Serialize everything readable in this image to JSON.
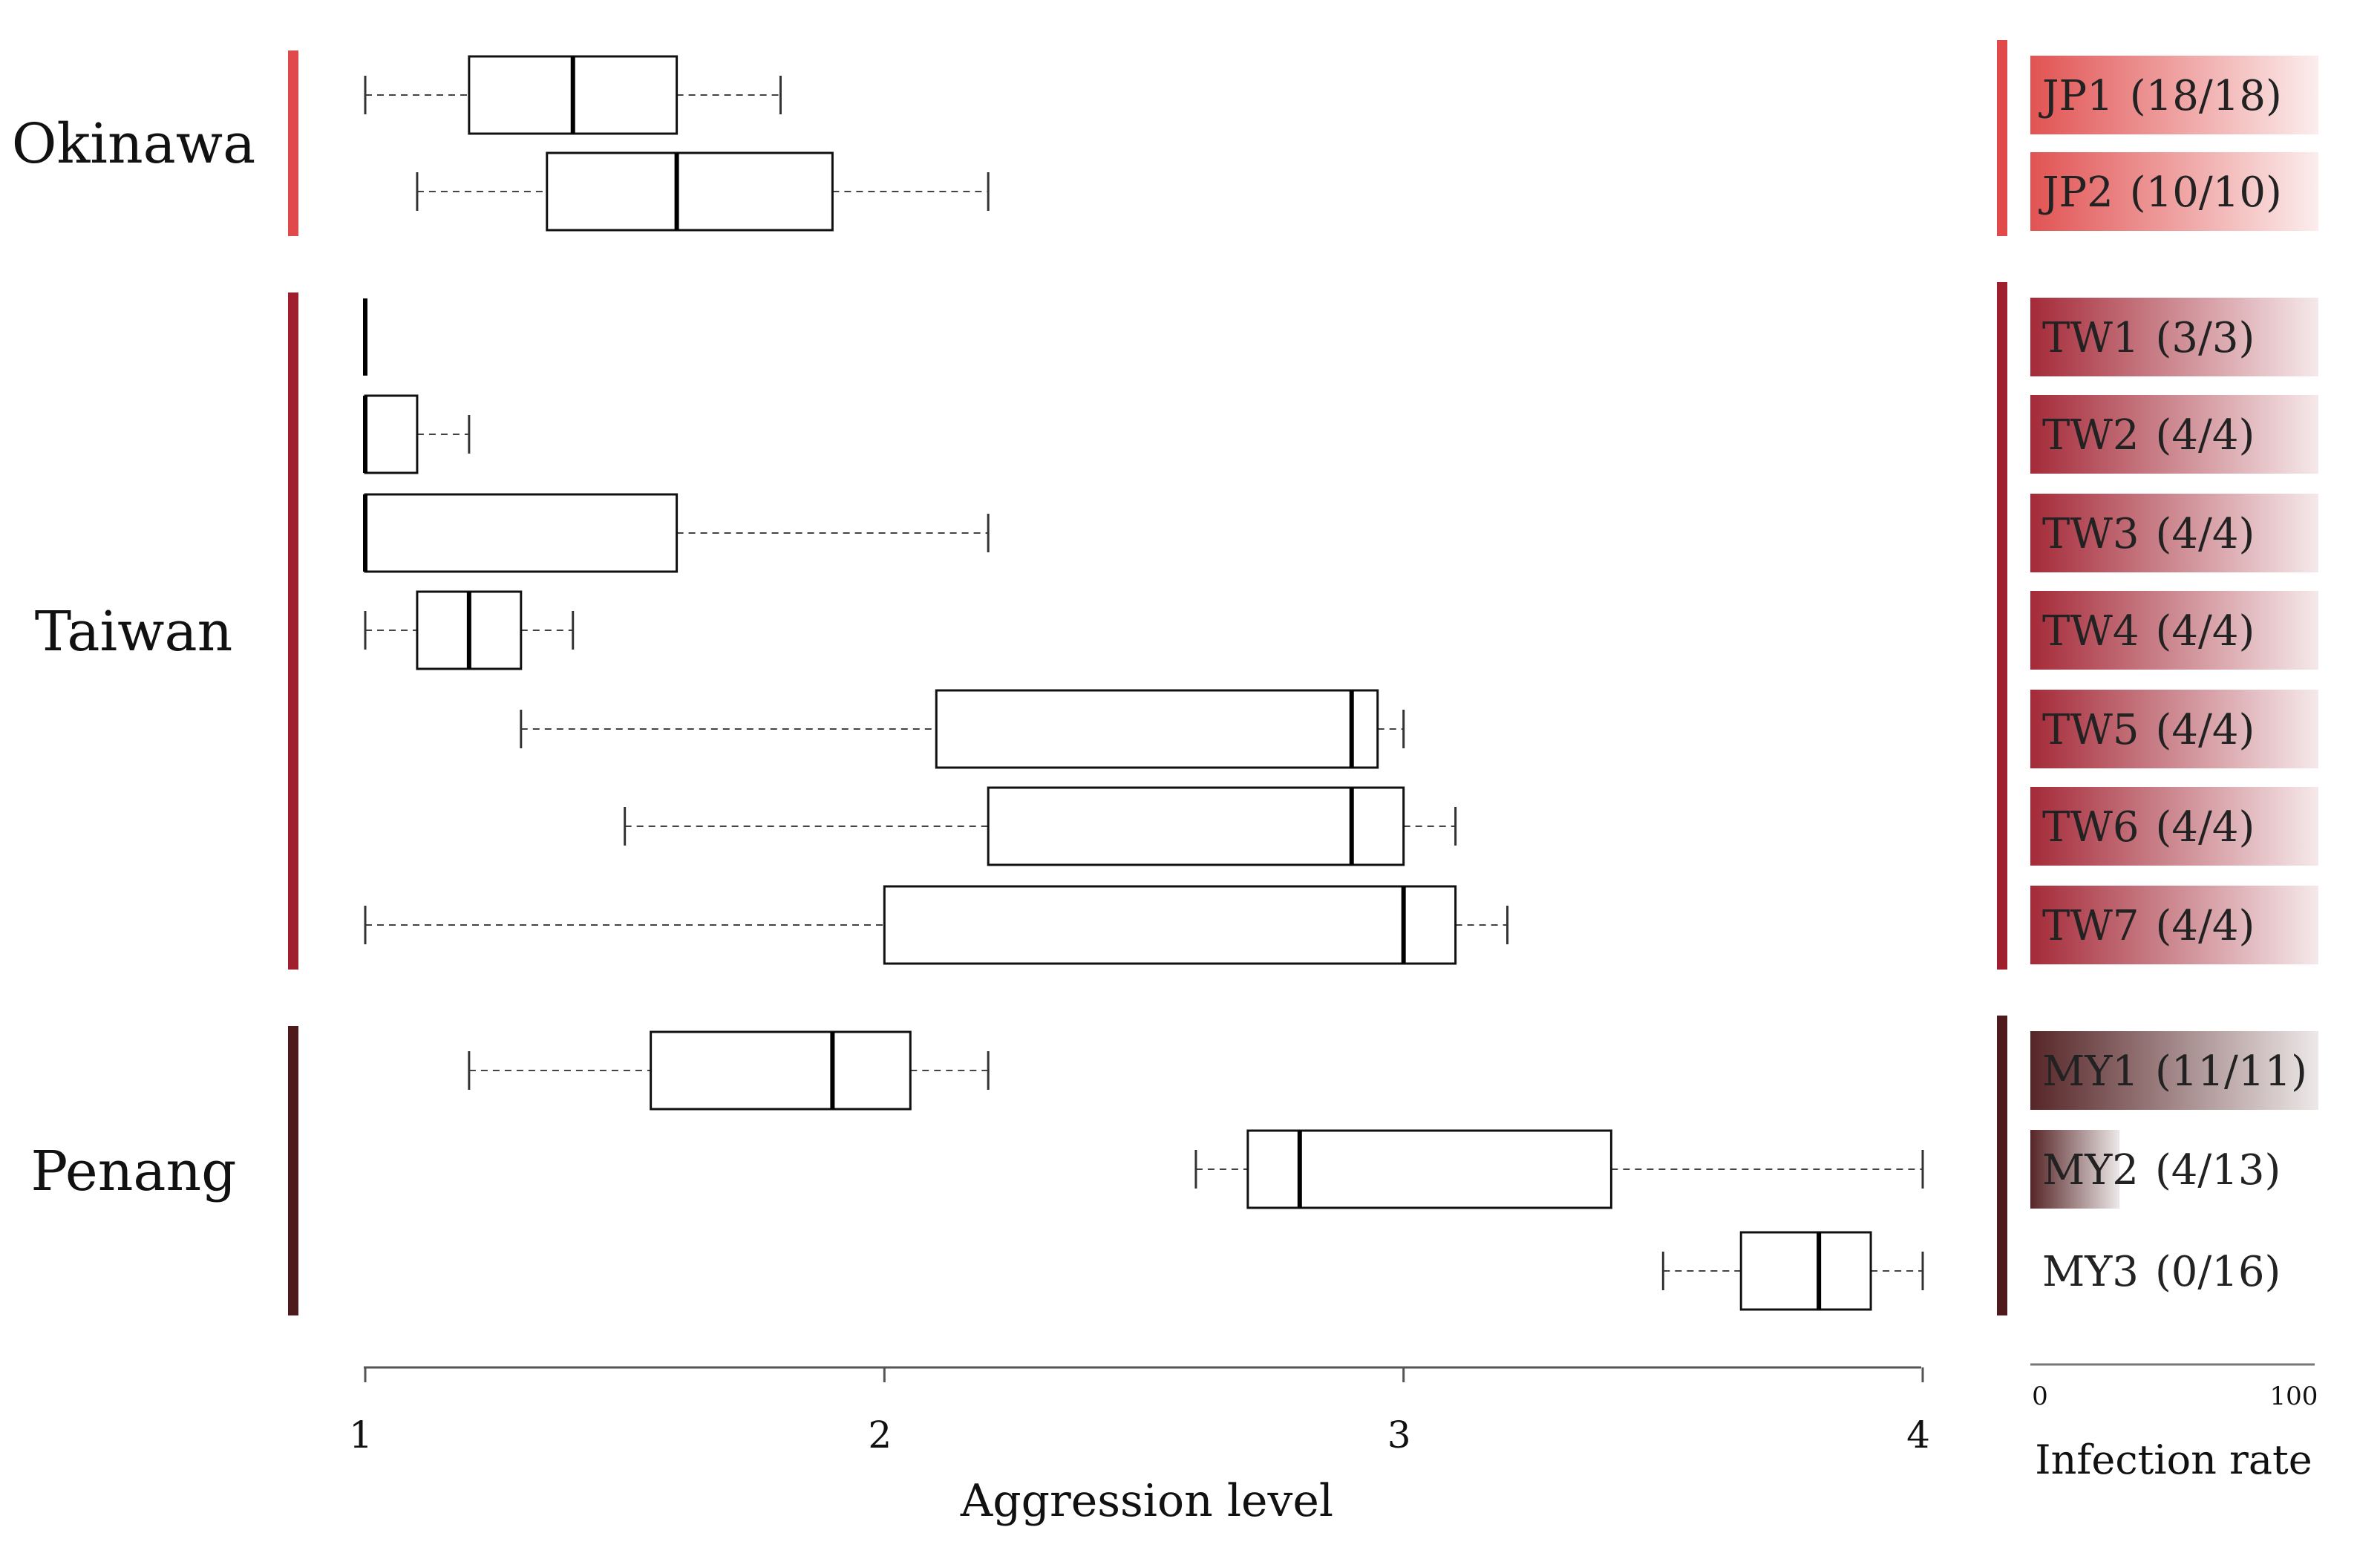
{
  "chart_data": {
    "type": "boxplot",
    "xlabel": "Aggression level",
    "xlim": [
      1,
      4
    ],
    "xticks": [
      "1",
      "2",
      "3",
      "4"
    ],
    "infection_axis": {
      "label": "Infection rate",
      "min_label": "0",
      "max_label": "100"
    },
    "colors": {
      "Okinawa": "#e04a4a",
      "Taiwan": "#a01f2e",
      "Penang": "#4e1a1c"
    },
    "groups": [
      {
        "name": "Okinawa",
        "color_key": "Okinawa",
        "populations": [
          {
            "id": "JP1",
            "count": "(18/18)",
            "infection_rate": 100,
            "whisker_low": 1.0,
            "q1": 1.2,
            "median": 1.4,
            "q3": 1.6,
            "whisker_high": 1.8
          },
          {
            "id": "JP2",
            "count": "(10/10)",
            "infection_rate": 100,
            "whisker_low": 1.1,
            "q1": 1.35,
            "median": 1.6,
            "q3": 1.9,
            "whisker_high": 2.2
          }
        ]
      },
      {
        "name": "Taiwan",
        "color_key": "Taiwan",
        "populations": [
          {
            "id": "TW1",
            "count": "(3/3)",
            "infection_rate": 100,
            "whisker_low": 1.0,
            "q1": 1.0,
            "median": 1.0,
            "q3": 1.0,
            "whisker_high": 1.0
          },
          {
            "id": "TW2",
            "count": "(4/4)",
            "infection_rate": 100,
            "whisker_low": 1.0,
            "q1": 1.0,
            "median": 1.0,
            "q3": 1.1,
            "whisker_high": 1.2
          },
          {
            "id": "TW3",
            "count": "(4/4)",
            "infection_rate": 100,
            "whisker_low": 1.0,
            "q1": 1.0,
            "median": 1.0,
            "q3": 1.6,
            "whisker_high": 2.2
          },
          {
            "id": "TW4",
            "count": "(4/4)",
            "infection_rate": 100,
            "whisker_low": 1.0,
            "q1": 1.1,
            "median": 1.2,
            "q3": 1.3,
            "whisker_high": 1.4
          },
          {
            "id": "TW5",
            "count": "(4/4)",
            "infection_rate": 100,
            "whisker_low": 1.3,
            "q1": 2.1,
            "median": 2.9,
            "q3": 2.95,
            "whisker_high": 3.0
          },
          {
            "id": "TW6",
            "count": "(4/4)",
            "infection_rate": 100,
            "whisker_low": 1.5,
            "q1": 2.2,
            "median": 2.9,
            "q3": 3.0,
            "whisker_high": 3.1
          },
          {
            "id": "TW7",
            "count": "(4/4)",
            "infection_rate": 100,
            "whisker_low": 1.0,
            "q1": 2.0,
            "median": 3.0,
            "q3": 3.1,
            "whisker_high": 3.2
          }
        ]
      },
      {
        "name": "Penang",
        "color_key": "Penang",
        "populations": [
          {
            "id": "MY1",
            "count": "(11/11)",
            "infection_rate": 100,
            "whisker_low": 1.2,
            "q1": 1.55,
            "median": 1.9,
            "q3": 2.05,
            "whisker_high": 2.2
          },
          {
            "id": "MY2",
            "count": "(4/13)",
            "infection_rate": 31,
            "whisker_low": 2.6,
            "q1": 2.7,
            "median": 2.8,
            "q3": 3.4,
            "whisker_high": 4.0
          },
          {
            "id": "MY3",
            "count": "(0/16)",
            "infection_rate": 0,
            "whisker_low": 3.5,
            "q1": 3.65,
            "median": 3.8,
            "q3": 3.9,
            "whisker_high": 4.0
          }
        ]
      }
    ]
  }
}
